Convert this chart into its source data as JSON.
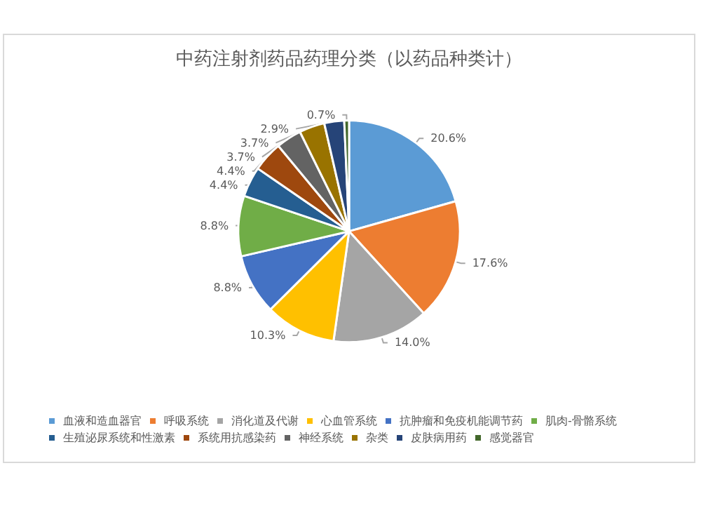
{
  "chart_data": {
    "type": "pie",
    "title": "中药注射剂药品药理分类（以药品种类计）",
    "categories": [
      "血液和造血器官",
      "呼吸系统",
      "消化道及代谢",
      "心血管系统",
      "抗肿瘤和免疫机能调节药",
      "肌肉-骨骼系统",
      "生殖泌尿系统和性激素",
      "系统用抗感染药",
      "神经系统",
      "杂类",
      "皮肤病用药",
      "感觉器官"
    ],
    "values": [
      20.6,
      17.6,
      14.0,
      10.3,
      8.8,
      8.8,
      4.4,
      4.4,
      3.7,
      3.7,
      2.9,
      0.7
    ],
    "value_labels": [
      "20.6%",
      "17.6%",
      "14.0%",
      "10.3%",
      "8.8%",
      "8.8%",
      "4.4%",
      "4.4%",
      "3.7%",
      "3.7%",
      "2.9%",
      "0.7%"
    ],
    "colors": [
      "#5b9bd5",
      "#ed7d31",
      "#a5a5a5",
      "#ffc000",
      "#4472c4",
      "#70ad47",
      "#255e91",
      "#9e480e",
      "#636363",
      "#997300",
      "#264478",
      "#43682b"
    ],
    "legend": "bottom"
  }
}
